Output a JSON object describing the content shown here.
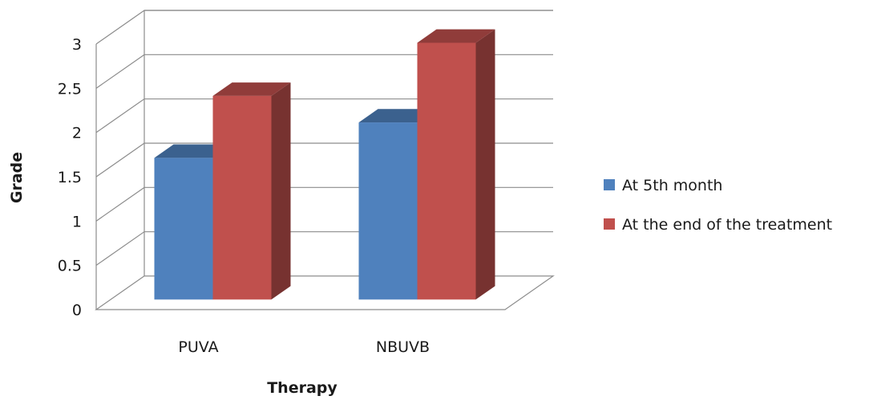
{
  "chart_data": {
    "type": "bar",
    "title": "",
    "xlabel": "Therapy",
    "ylabel": "Grade",
    "categories": [
      "PUVA",
      "NBUVB"
    ],
    "series": [
      {
        "name": "At 5th month",
        "values": [
          1.6,
          2.0
        ],
        "color": "#4F81BD"
      },
      {
        "name": "At the end of the treatment",
        "values": [
          2.3,
          2.9
        ],
        "color": "#C0504D"
      }
    ],
    "ylim": [
      0,
      3
    ],
    "yticks": [
      "0",
      "0.5",
      "1",
      "1.5",
      "2",
      "2.5",
      "3"
    ],
    "grid": true,
    "legend": "right",
    "style": "3d-clustered-column"
  }
}
